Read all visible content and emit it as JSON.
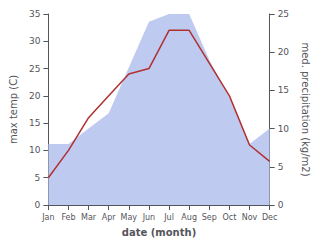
{
  "chart_data": {
    "type": "line",
    "xlabel": "date (month)",
    "ylabel": "max temp (C)",
    "y2label": "med. precipitation (kg/m2)",
    "categories": [
      "Jan",
      "Feb",
      "Mar",
      "Apr",
      "May",
      "Jun",
      "Jul",
      "Aug",
      "Sep",
      "Oct",
      "Nov",
      "Dec"
    ],
    "series": [
      {
        "type": "area",
        "axis": "y2",
        "color": "#b8c4ee",
        "values": [
          8,
          8,
          10,
          12,
          18,
          24,
          25,
          25,
          19,
          14,
          8,
          10
        ]
      },
      {
        "type": "line",
        "color": "#b03030",
        "values": [
          5,
          10,
          16,
          20,
          24,
          25,
          32,
          32,
          26,
          20,
          11,
          8
        ]
      }
    ],
    "ylim": [
      0,
      35
    ],
    "yticks": [
      0,
      5,
      10,
      15,
      20,
      25,
      30,
      35
    ],
    "y2lim": [
      0,
      25
    ],
    "y2ticks": [
      0,
      5,
      10,
      15,
      20,
      25
    ],
    "grid": false
  }
}
